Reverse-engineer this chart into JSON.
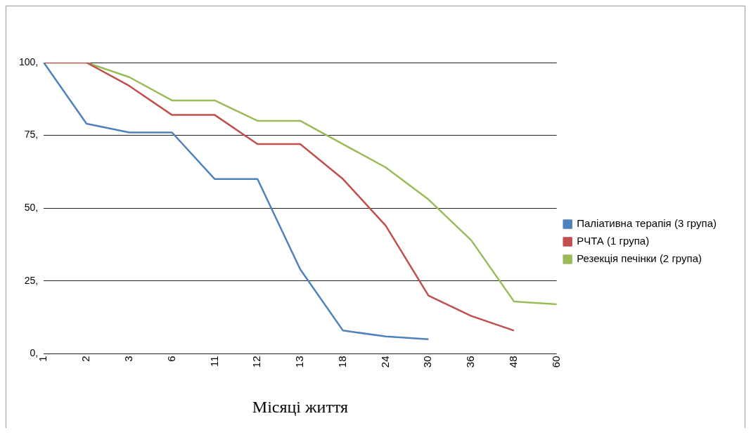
{
  "chart_data": {
    "type": "line",
    "xlabel": "Місяці життя",
    "categories": [
      "1",
      "2",
      "3",
      "6",
      "11",
      "12",
      "13",
      "18",
      "24",
      "30",
      "36",
      "48",
      "60"
    ],
    "series": [
      {
        "name": "Паліативна терапія (3 група)",
        "color": "#4f81bd",
        "values": [
          100,
          79,
          76,
          76,
          60,
          60,
          29,
          8,
          6,
          5,
          null,
          null,
          null
        ]
      },
      {
        "name": "РЧТА (1 група)",
        "color": "#c0504d",
        "values": [
          100,
          100,
          92,
          82,
          82,
          72,
          72,
          60,
          44,
          20,
          13,
          8,
          null
        ]
      },
      {
        "name": "Резекція печінки (2 група)",
        "color": "#9bbb59",
        "values": [
          100,
          100,
          95,
          87,
          87,
          80,
          80,
          72,
          64,
          53,
          39,
          18,
          17
        ]
      }
    ],
    "ylim": [
      0,
      100
    ],
    "yticks": [
      {
        "value": 0,
        "label": "0,"
      },
      {
        "value": 25,
        "label": "25,"
      },
      {
        "value": 50,
        "label": "50,"
      },
      {
        "value": 75,
        "label": "75,"
      },
      {
        "value": 100,
        "label": "100,"
      }
    ],
    "grid": "y",
    "legend": "right",
    "marker": "none",
    "line_style": "solid"
  }
}
